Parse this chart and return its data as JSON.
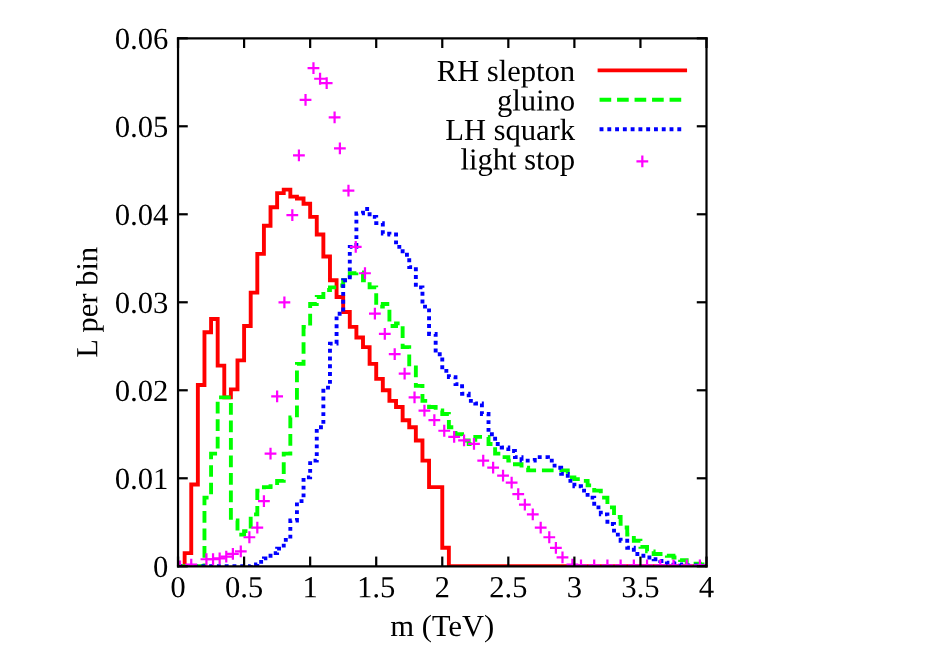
{
  "chart_data": {
    "type": "histogram",
    "xlabel": "m (TeV)",
    "ylabel": "L per bin",
    "bins": [
      0,
      0.05,
      0.1,
      0.15,
      0.2,
      0.25,
      0.3,
      0.35,
      0.4,
      0.45,
      0.5,
      0.55,
      0.6,
      0.65,
      0.7,
      0.75,
      0.8,
      0.85,
      0.9,
      0.95,
      1.0,
      1.05,
      1.1,
      1.15,
      1.2,
      1.25,
      1.3,
      1.35,
      1.4,
      1.45,
      1.5,
      1.55,
      1.6,
      1.65,
      1.7,
      1.75,
      1.8,
      1.85,
      1.9,
      1.95,
      2.0,
      2.05,
      2.1,
      2.15,
      2.2,
      2.25,
      2.3,
      2.35,
      2.4,
      2.45,
      2.5,
      2.55,
      2.6,
      2.65,
      2.7,
      2.75,
      2.8,
      2.85,
      2.9,
      2.95,
      3.0,
      3.05,
      3.1,
      3.15,
      3.2,
      3.25,
      3.3,
      3.35,
      3.4,
      3.45,
      3.5,
      3.55,
      3.6,
      3.65,
      3.7,
      3.75,
      3.8,
      3.85,
      3.9,
      3.95,
      4.0
    ],
    "series": [
      {
        "name": "RH slepton",
        "color": "#ff0000",
        "line_style": "solid",
        "values": [
          0,
          0.0015,
          0.0093,
          0.0206,
          0.0266,
          0.0281,
          0.0228,
          0.0192,
          0.0201,
          0.0234,
          0.0273,
          0.0311,
          0.0355,
          0.0387,
          0.0408,
          0.0424,
          0.0428,
          0.042,
          0.0418,
          0.0412,
          0.0397,
          0.0377,
          0.0352,
          0.0325,
          0.0306,
          0.0289,
          0.0272,
          0.026,
          0.0249,
          0.023,
          0.0213,
          0.02,
          0.0188,
          0.0181,
          0.0166,
          0.0158,
          0.0143,
          0.012,
          0.009,
          0.009,
          0.0021,
          0,
          0,
          0,
          0,
          0,
          0,
          0,
          0,
          0,
          0,
          0,
          0,
          0,
          0,
          0,
          0,
          0,
          0,
          0,
          0,
          0,
          0,
          0,
          0,
          0,
          0,
          0,
          0,
          0,
          0,
          0,
          0,
          0,
          0,
          0,
          0,
          0,
          0,
          0
        ]
      },
      {
        "name": "gluino",
        "color": "#00ff00",
        "line_style": "dashed",
        "values": [
          0,
          0,
          0,
          0,
          0.0078,
          0.0128,
          0.0192,
          0.0192,
          0.0052,
          0.0036,
          0.004,
          0.0059,
          0.0086,
          0.009,
          0.0091,
          0.0097,
          0.0128,
          0.0169,
          0.023,
          0.0272,
          0.0298,
          0.0306,
          0.0314,
          0.0317,
          0.0319,
          0.0325,
          0.0333,
          0.0334,
          0.0325,
          0.0317,
          0.0295,
          0.0298,
          0.0273,
          0.0276,
          0.0249,
          0.0226,
          0.0205,
          0.0188,
          0.0181,
          0.0177,
          0.0173,
          0.0158,
          0.015,
          0.0143,
          0.0139,
          0.0147,
          0.0147,
          0.0139,
          0.0128,
          0.0124,
          0.012,
          0.0116,
          0.0112,
          0.0109,
          0.0109,
          0.0109,
          0.0109,
          0.0109,
          0.0109,
          0.0101,
          0.0099,
          0.0097,
          0.0092,
          0.0086,
          0.0078,
          0.0067,
          0.0056,
          0.0044,
          0.0036,
          0.0029,
          0.0022,
          0.0017,
          0.0014,
          0.0014,
          0.0012,
          0.001,
          0.0007,
          0.0004,
          0.0003,
          0.0002
        ]
      },
      {
        "name": "LH squark",
        "color": "#0000ff",
        "line_style": "dotted",
        "values": [
          0,
          0,
          0,
          0,
          0,
          0,
          0,
          0,
          0,
          0,
          0,
          0.0002,
          0.0005,
          0.0009,
          0.0015,
          0.002,
          0.003,
          0.0052,
          0.0074,
          0.0101,
          0.012,
          0.0158,
          0.0203,
          0.0253,
          0.0287,
          0.0325,
          0.0363,
          0.0401,
          0.0406,
          0.0397,
          0.039,
          0.0378,
          0.0377,
          0.0363,
          0.0354,
          0.034,
          0.0317,
          0.0295,
          0.0264,
          0.0241,
          0.0222,
          0.0215,
          0.0207,
          0.0196,
          0.0188,
          0.0185,
          0.0173,
          0.015,
          0.0139,
          0.0135,
          0.0131,
          0.0124,
          0.012,
          0.012,
          0.0124,
          0.0124,
          0.012,
          0.0112,
          0.0105,
          0.0097,
          0.0091,
          0.0086,
          0.0078,
          0.0067,
          0.0059,
          0.0048,
          0.0036,
          0.0029,
          0.0021,
          0.0014,
          0.0012,
          0.001,
          0.0008,
          0.0006,
          0.0004,
          0.0003,
          0.0002,
          0.0001,
          0.0001,
          0
        ]
      },
      {
        "name": "light stop",
        "type": "scatter",
        "color": "#ff00ff",
        "marker": "cross",
        "x": [
          0.015,
          0.1,
          0.215,
          0.265,
          0.315,
          0.365,
          0.415,
          0.475,
          0.54,
          0.6,
          0.65,
          0.7,
          0.75,
          0.805,
          0.865,
          0.915,
          0.965,
          1.025,
          1.075,
          1.125,
          1.185,
          1.225,
          1.29,
          1.345,
          1.415,
          1.49,
          1.565,
          1.64,
          1.715,
          1.79,
          1.865,
          1.94,
          2.015,
          2.09,
          2.165,
          2.24,
          2.31,
          2.385,
          2.46,
          2.525,
          2.575,
          2.625,
          2.685,
          2.745,
          2.81,
          2.86,
          2.91,
          2.985,
          3.05,
          3.15,
          3.25,
          3.35,
          3.45,
          3.55,
          3.65,
          3.75,
          3.85,
          3.95
        ],
        "values": [
          0,
          0.0002,
          0.0008,
          0.0008,
          0.0009,
          0.0011,
          0.0014,
          0.0017,
          0.0033,
          0.0044,
          0.0074,
          0.0128,
          0.0193,
          0.03,
          0.0399,
          0.0467,
          0.053,
          0.0566,
          0.0554,
          0.0549,
          0.051,
          0.0475,
          0.0427,
          0.0363,
          0.0333,
          0.0287,
          0.0264,
          0.0241,
          0.0219,
          0.0192,
          0.0177,
          0.0166,
          0.0154,
          0.0147,
          0.0143,
          0.0139,
          0.012,
          0.0112,
          0.0103,
          0.0095,
          0.0082,
          0.007,
          0.0059,
          0.0044,
          0.0033,
          0.0021,
          0.001,
          0.0002,
          0.0001,
          0.0001,
          0.0001,
          0.0001,
          0.0001,
          0.0001,
          0.0001,
          0.0001,
          0.0001,
          0.0001
        ]
      }
    ],
    "xlim": [
      0,
      4
    ],
    "xticks": [
      0,
      0.5,
      1,
      1.5,
      2,
      2.5,
      3,
      3.5,
      4
    ],
    "ylim": [
      0,
      0.06
    ],
    "yticks": [
      0,
      0.01,
      0.02,
      0.03,
      0.04,
      0.05,
      0.06
    ],
    "grid": false,
    "legend": "top right"
  }
}
